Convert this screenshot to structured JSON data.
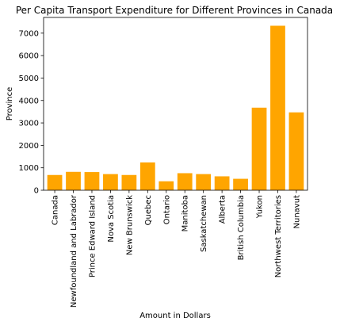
{
  "chart_data": {
    "type": "bar",
    "title": "Per Capita Transport Expenditure for Different Provinces in Canada",
    "xlabel": "Amount in Dollars",
    "ylabel": "Province",
    "categories": [
      "Canada",
      "Newfoundland and Labrador",
      "Prince Edward Island",
      "Nova Scotia",
      "New Brunswick",
      "Quebec",
      "Ontario",
      "Manitoba",
      "Saskatchewan",
      "Alberta",
      "British Columbia",
      "Yukon",
      "Northwest Territories",
      "Nunavut"
    ],
    "values": [
      680,
      820,
      810,
      720,
      680,
      1240,
      400,
      760,
      720,
      620,
      510,
      3680,
      7330,
      3470
    ],
    "ylim": [
      0,
      7700
    ],
    "yticks": [
      0,
      1000,
      2000,
      3000,
      4000,
      5000,
      6000,
      7000
    ],
    "bar_color": "#ffa500",
    "grid": false,
    "legend": "none"
  }
}
